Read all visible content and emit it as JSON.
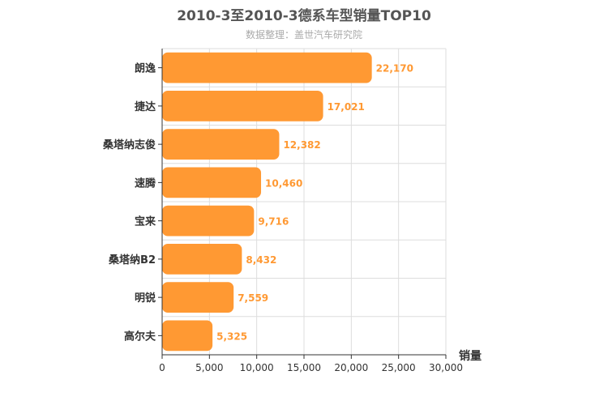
{
  "chart_data": {
    "type": "bar",
    "orientation": "horizontal",
    "title": "2010-3至2010-3德系车型销量TOP10",
    "subtitle": "数据整理：盖世汽车研究院",
    "xlabel": "销量",
    "categories": [
      "朗逸",
      "捷达",
      "桑塔纳志俊",
      "速腾",
      "宝来",
      "桑塔纳B2",
      "明锐",
      "高尔夫"
    ],
    "values": [
      22170,
      17021,
      12382,
      10460,
      9716,
      8432,
      7559,
      5325
    ],
    "value_labels": [
      "22,170",
      "17,021",
      "12,382",
      "10,460",
      "9,716",
      "8,432",
      "7,559",
      "5,325"
    ],
    "xlim": [
      0,
      30000
    ],
    "xticks": [
      0,
      5000,
      10000,
      15000,
      20000,
      25000,
      30000
    ],
    "xtick_labels": [
      "0",
      "5,000",
      "10,000",
      "15,000",
      "20,000",
      "25,000",
      "30,000"
    ],
    "grid": true,
    "bar_color": "#FF9933",
    "label_color": "#FF9933"
  }
}
